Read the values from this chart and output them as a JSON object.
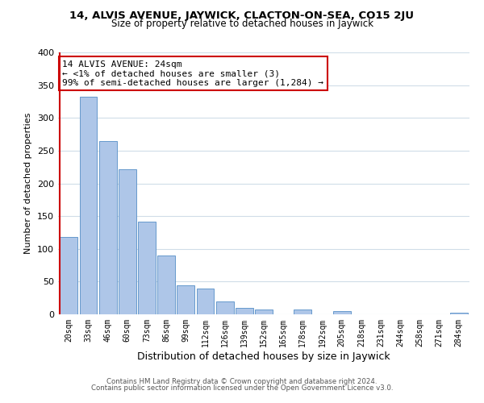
{
  "title": "14, ALVIS AVENUE, JAYWICK, CLACTON-ON-SEA, CO15 2JU",
  "subtitle": "Size of property relative to detached houses in Jaywick",
  "xlabel": "Distribution of detached houses by size in Jaywick",
  "ylabel": "Number of detached properties",
  "bar_color": "#aec6e8",
  "bar_edge_color": "#6699cc",
  "annotation_box_color": "#ffffff",
  "annotation_border_color": "#cc0000",
  "property_line_color": "#cc0000",
  "categories": [
    "20sqm",
    "33sqm",
    "46sqm",
    "60sqm",
    "73sqm",
    "86sqm",
    "99sqm",
    "112sqm",
    "126sqm",
    "139sqm",
    "152sqm",
    "165sqm",
    "178sqm",
    "192sqm",
    "205sqm",
    "218sqm",
    "231sqm",
    "244sqm",
    "258sqm",
    "271sqm",
    "284sqm"
  ],
  "values": [
    118,
    332,
    265,
    222,
    141,
    90,
    44,
    40,
    20,
    10,
    7,
    0,
    7,
    0,
    5,
    0,
    0,
    0,
    0,
    0,
    3
  ],
  "property_bin_index": 0,
  "annotation_title": "14 ALVIS AVENUE: 24sqm",
  "annotation_line1": "← <1% of detached houses are smaller (3)",
  "annotation_line2": "99% of semi-detached houses are larger (1,284) →",
  "ylim": [
    0,
    400
  ],
  "yticks": [
    0,
    50,
    100,
    150,
    200,
    250,
    300,
    350,
    400
  ],
  "footer_line1": "Contains HM Land Registry data © Crown copyright and database right 2024.",
  "footer_line2": "Contains public sector information licensed under the Open Government Licence v3.0.",
  "background_color": "#ffffff",
  "grid_color": "#d0dde8"
}
